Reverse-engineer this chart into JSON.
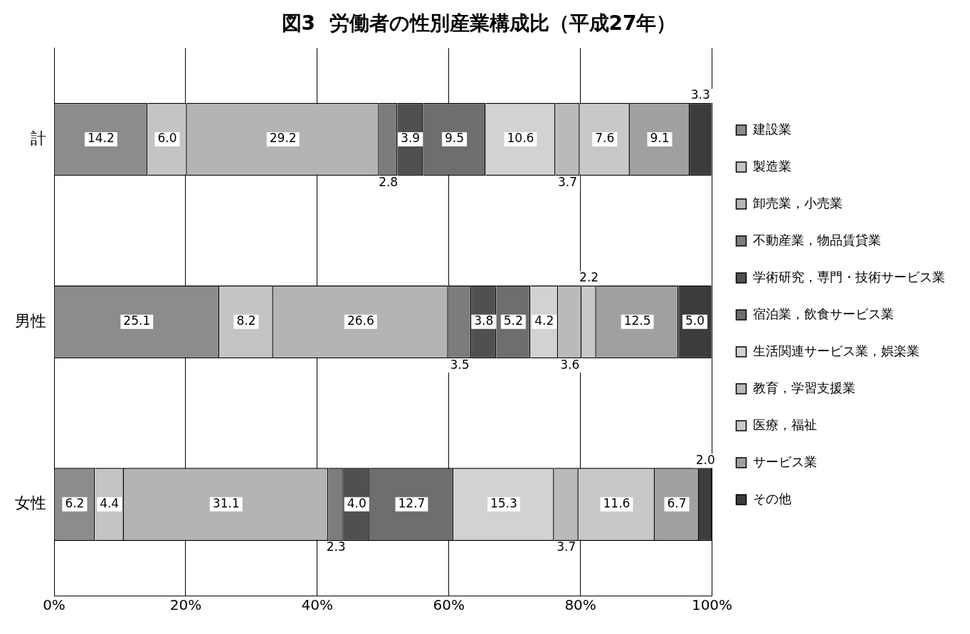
{
  "chart_data": {
    "type": "bar",
    "orientation": "horizontal",
    "stacked": true,
    "title": "図3  労働者の性別産業構成比（平成27年）",
    "categories": [
      "計",
      "男性",
      "女性"
    ],
    "xlim": [
      0,
      100
    ],
    "xticks": [
      {
        "value": 0,
        "label": "0%"
      },
      {
        "value": 20,
        "label": "20%"
      },
      {
        "value": 40,
        "label": "40%"
      },
      {
        "value": 60,
        "label": "60%"
      },
      {
        "value": 80,
        "label": "80%"
      },
      {
        "value": 100,
        "label": "100%"
      }
    ],
    "grid": "x",
    "legend": "right",
    "series": [
      {
        "name": "建設業",
        "color": "#8c8c8c",
        "values": [
          14.2,
          25.1,
          6.2
        ],
        "value_labels": [
          "14.2",
          "25.1",
          "6.2"
        ]
      },
      {
        "name": "製造業",
        "color": "#c4c4c4",
        "values": [
          6.0,
          8.2,
          4.4
        ],
        "value_labels": [
          "6.0",
          "8.2",
          "4.4"
        ]
      },
      {
        "name": "卸売業，小売業",
        "color": "#b4b4b4",
        "values": [
          29.2,
          26.6,
          31.1
        ],
        "value_labels": [
          "29.2",
          "26.6",
          "31.1"
        ]
      },
      {
        "name": "不動産業，物品賃貸業",
        "color": "#7c7c7c",
        "values": [
          2.8,
          3.5,
          2.3
        ],
        "value_labels": [
          "2.8",
          "3.5",
          "2.3"
        ]
      },
      {
        "name": "学術研究，専門・技術サービス業",
        "color": "#505050",
        "values": [
          3.9,
          3.8,
          4.0
        ],
        "value_labels": [
          "3.9",
          "3.8",
          "4.0"
        ]
      },
      {
        "name": "宿泊業，飲食サービス業",
        "color": "#6e6e6e",
        "values": [
          9.5,
          5.2,
          12.7
        ],
        "value_labels": [
          "9.5",
          "5.2",
          "12.7"
        ]
      },
      {
        "name": "生活関連サービス業，娯楽業",
        "color": "#d2d2d2",
        "values": [
          10.6,
          4.2,
          15.3
        ],
        "value_labels": [
          "10.6",
          "4.2",
          "15.3"
        ]
      },
      {
        "name": "教育，学習支援業",
        "color": "#bababa",
        "values": [
          3.7,
          3.6,
          3.7
        ],
        "value_labels": [
          "3.7",
          "3.6",
          "3.7"
        ]
      },
      {
        "name": "医療，福祉",
        "color": "#c8c8c8",
        "values": [
          7.6,
          2.2,
          11.6
        ],
        "value_labels": [
          "7.6",
          "2.2",
          "11.6"
        ]
      },
      {
        "name": "サービス業",
        "color": "#a0a0a0",
        "values": [
          9.1,
          12.5,
          6.7
        ],
        "value_labels": [
          "9.1",
          "12.5",
          "6.7"
        ]
      },
      {
        "name": "その他",
        "color": "#3c3c3c",
        "values": [
          3.3,
          5.0,
          2.0
        ],
        "value_labels": [
          "3.3",
          "5.0",
          "2.0"
        ]
      }
    ]
  }
}
